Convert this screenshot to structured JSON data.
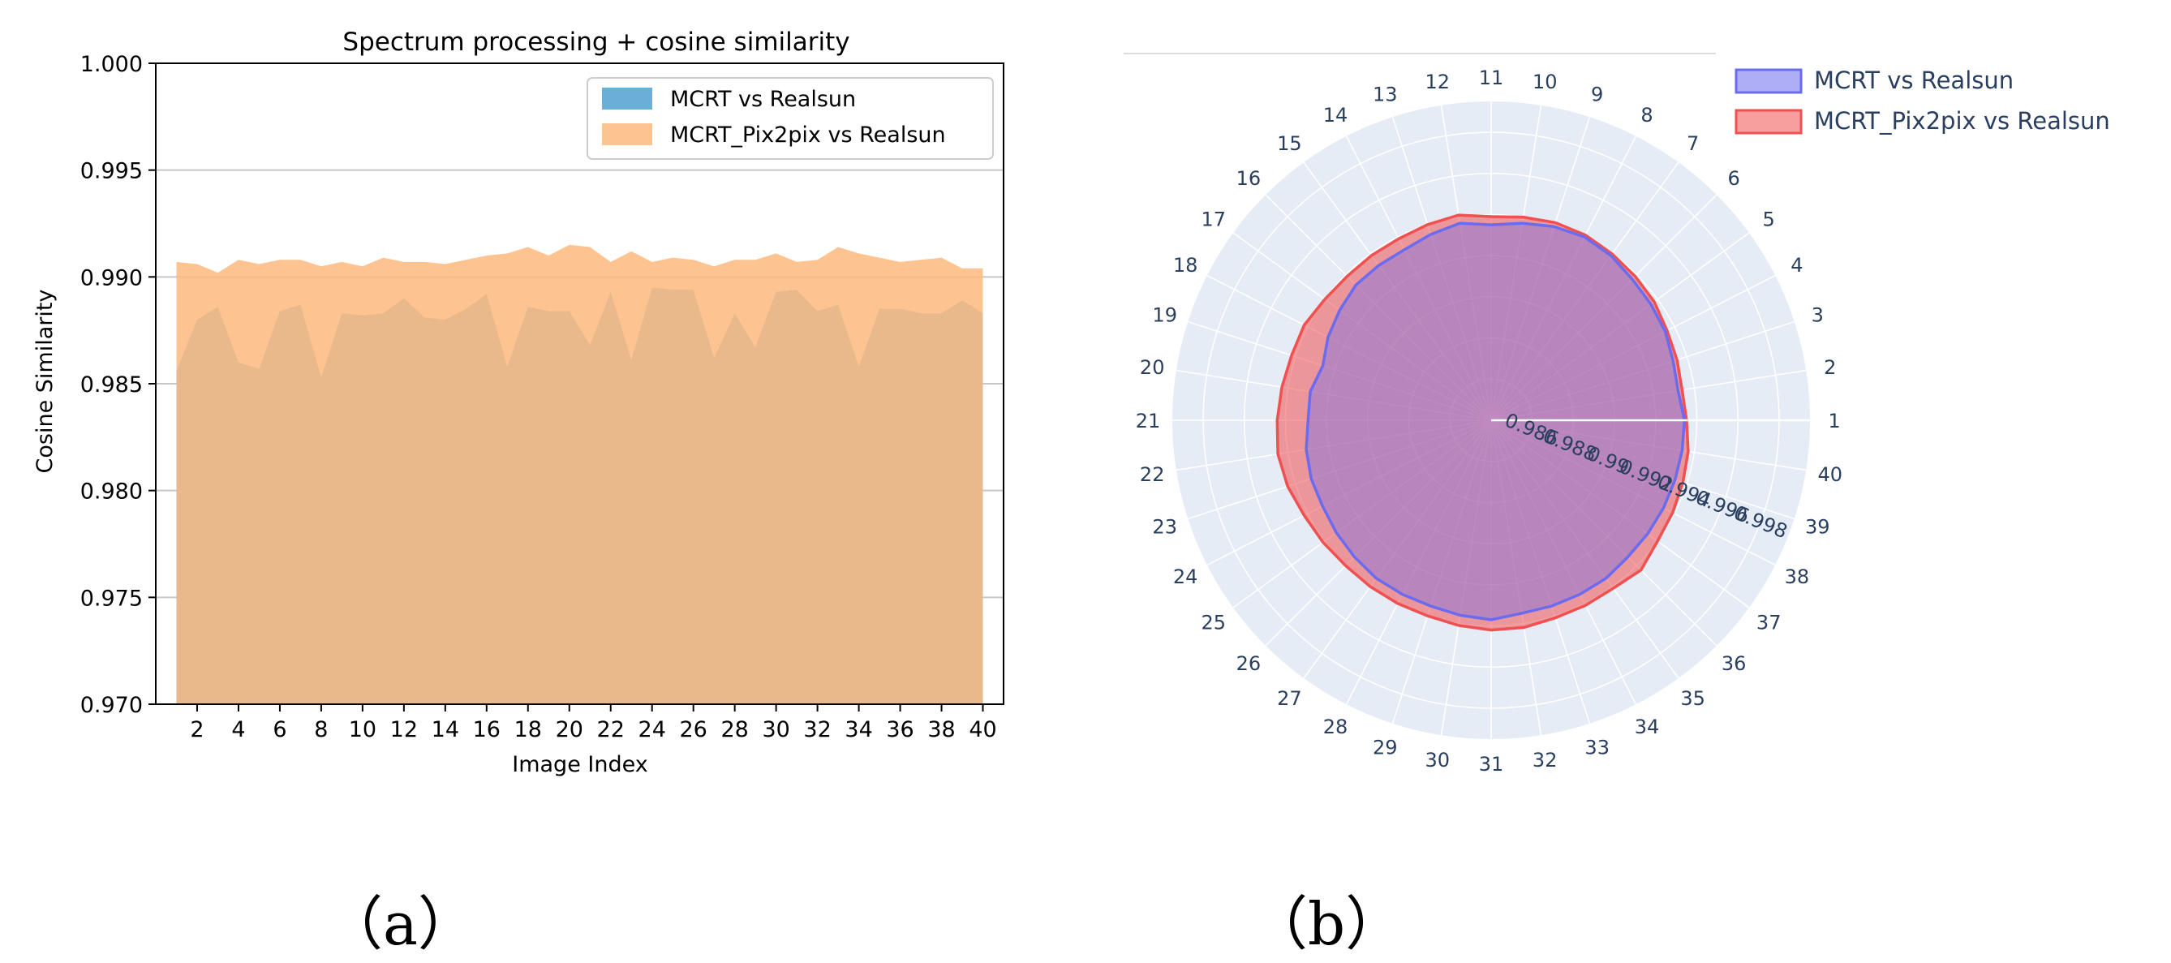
{
  "charts": {
    "a": {
      "panel_label": "（a）",
      "chart_data": {
        "type": "area",
        "title": "Spectrum processing + cosine similarity",
        "xlabel": "Image Index",
        "ylabel": "Cosine Similarity",
        "x": [
          1,
          2,
          3,
          4,
          5,
          6,
          7,
          8,
          9,
          10,
          11,
          12,
          13,
          14,
          15,
          16,
          17,
          18,
          19,
          20,
          21,
          22,
          23,
          24,
          25,
          26,
          27,
          28,
          29,
          30,
          31,
          32,
          33,
          34,
          35,
          36,
          37,
          38,
          39,
          40
        ],
        "xticks": [
          "2",
          "4",
          "6",
          "8",
          "10",
          "12",
          "14",
          "16",
          "18",
          "20",
          "22",
          "24",
          "26",
          "28",
          "30",
          "32",
          "34",
          "36",
          "38",
          "40"
        ],
        "ylim": [
          0.97,
          1.0
        ],
        "yticks": [
          "0.970",
          "0.975",
          "0.980",
          "0.985",
          "0.990",
          "0.995",
          "1.000"
        ],
        "grid": "horizontal",
        "legend_position": "top-right",
        "series": [
          {
            "name": "MCRT vs Realsun",
            "color": "#6baed6",
            "values": [
              0.9856,
              0.988,
              0.9886,
              0.986,
              0.9857,
              0.9884,
              0.9887,
              0.9853,
              0.9883,
              0.9882,
              0.9883,
              0.989,
              0.9881,
              0.988,
              0.9885,
              0.9892,
              0.9858,
              0.9886,
              0.9884,
              0.9884,
              0.9868,
              0.9893,
              0.9861,
              0.9895,
              0.9894,
              0.9894,
              0.9862,
              0.9883,
              0.9867,
              0.9893,
              0.9894,
              0.9884,
              0.9887,
              0.9858,
              0.9885,
              0.9885,
              0.9883,
              0.9883,
              0.9889,
              0.9883
            ]
          },
          {
            "name": "MCRT_Pix2pix vs Realsun",
            "color": "#fdb97d",
            "values": [
              0.9907,
              0.9906,
              0.9902,
              0.9908,
              0.9906,
              0.9908,
              0.9908,
              0.9905,
              0.9907,
              0.9905,
              0.9909,
              0.9907,
              0.9907,
              0.9906,
              0.9908,
              0.991,
              0.9911,
              0.9914,
              0.991,
              0.9915,
              0.9914,
              0.9907,
              0.9912,
              0.9907,
              0.9909,
              0.9908,
              0.9905,
              0.9908,
              0.9908,
              0.9911,
              0.9907,
              0.9908,
              0.9914,
              0.9911,
              0.9909,
              0.9907,
              0.9908,
              0.9909,
              0.9904,
              0.9904
            ]
          }
        ]
      }
    },
    "b": {
      "panel_label": "（b）",
      "chart_data": {
        "type": "radar",
        "angular_labels": [
          "1",
          "2",
          "3",
          "4",
          "5",
          "6",
          "7",
          "8",
          "9",
          "10",
          "11",
          "12",
          "13",
          "14",
          "15",
          "16",
          "17",
          "18",
          "19",
          "20",
          "21",
          "22",
          "23",
          "24",
          "25",
          "26",
          "27",
          "28",
          "29",
          "30",
          "31",
          "32",
          "33",
          "34",
          "35",
          "36",
          "37",
          "38",
          "39",
          "40"
        ],
        "radial_range": [
          0.984,
          0.9995
        ],
        "radial_ticks": [
          "0.986",
          "0.988",
          "0.99",
          "0.992",
          "0.994",
          "0.996",
          "0.998"
        ],
        "legend_position": "top-right",
        "series": [
          {
            "name": "MCRT vs Realsun",
            "color": "#6b6bf0",
            "values": [
              0.9934,
              0.9932,
              0.9933,
              0.9935,
              0.9936,
              0.9937,
              0.9939,
              0.994,
              0.9939,
              0.9937,
              0.9935,
              0.9937,
              0.9935,
              0.9933,
              0.9933,
              0.9933,
              0.9931,
              0.9929,
              0.9926,
              0.9929,
              0.9929,
              0.9931,
              0.9932,
              0.9932,
              0.9933,
              0.9934,
              0.9935,
              0.9935,
              0.9935,
              0.9936,
              0.9937,
              0.9935,
              0.9935,
              0.9935,
              0.9935,
              0.9934,
              0.9934,
              0.9934,
              0.9934,
              0.9934
            ]
          },
          {
            "name": "MCRT_Pix2pix vs Realsun",
            "color": "#f05050",
            "values": [
              0.9935,
              0.9934,
              0.9935,
              0.9936,
              0.9938,
              0.9939,
              0.994,
              0.9941,
              0.9941,
              0.994,
              0.9939,
              0.9941,
              0.994,
              0.9939,
              0.9939,
              0.9939,
              0.994,
              0.9942,
              0.9942,
              0.9943,
              0.9944,
              0.9945,
              0.9944,
              0.9942,
              0.9941,
              0.994,
              0.994,
              0.994,
              0.994,
              0.9941,
              0.9942,
              0.9942,
              0.9941,
              0.9941,
              0.9941,
              0.9943,
              0.994,
              0.9939,
              0.9938,
              0.9937
            ]
          }
        ]
      }
    }
  }
}
